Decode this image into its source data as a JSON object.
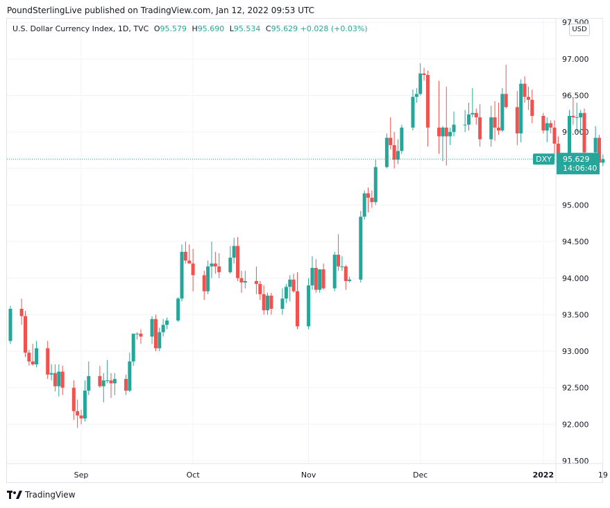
{
  "publisher_line": "PoundSterlingLive published on TradingView.com, Jan 12, 2022 09:53 UTC",
  "brand": "TradingView",
  "legend": {
    "symbol": "U.S. Dollar Currency Index, 1D, TVC",
    "o_label": "O",
    "o_value": "95.579",
    "h_label": "H",
    "h_value": "95.690",
    "l_label": "L",
    "l_value": "95.534",
    "c_label": "C",
    "c_value": "95.629",
    "change": "+0.028 (+0.03%)"
  },
  "currency_button": "USD",
  "price_tag": {
    "ticker": "DXY",
    "price": "95.629",
    "countdown": "14:06:40"
  },
  "colors": {
    "up": "#26a69a",
    "down": "#ef5350",
    "grid": "#f0f3fa",
    "axis_text": "#131722"
  },
  "chart_data": {
    "type": "candlestick",
    "title": "U.S. Dollar Currency Index, 1D, TVC",
    "y_ticks": [
      "91.500",
      "92.000",
      "92.500",
      "93.000",
      "93.500",
      "94.000",
      "94.500",
      "95.000",
      "95.500",
      "96.000",
      "96.500",
      "97.000",
      "97.500"
    ],
    "ylim": [
      91.5,
      97.5
    ],
    "x_ticks": [
      {
        "label": "Sep",
        "date": "2021-09-01",
        "bold": false
      },
      {
        "label": "Oct",
        "date": "2021-10-01",
        "bold": false
      },
      {
        "label": "Nov",
        "date": "2021-11-01",
        "bold": false
      },
      {
        "label": "Dec",
        "date": "2021-12-01",
        "bold": false
      },
      {
        "label": "2022",
        "date": "2022-01-03",
        "bold": true
      },
      {
        "label": "19",
        "date": "2022-01-19",
        "bold": false
      }
    ],
    "grid": true,
    "last_price": 95.629,
    "ohlc": [
      {
        "date": "2021-08-13",
        "o": 93.14,
        "h": 93.62,
        "l": 93.1,
        "c": 93.58
      },
      {
        "date": "2021-08-16",
        "o": 93.58,
        "h": 93.72,
        "l": 93.36,
        "c": 93.48
      },
      {
        "date": "2021-08-17",
        "o": 93.48,
        "h": 93.55,
        "l": 92.92,
        "c": 92.98
      },
      {
        "date": "2021-08-18",
        "o": 92.98,
        "h": 93.02,
        "l": 92.8,
        "c": 92.86
      },
      {
        "date": "2021-08-19",
        "o": 92.86,
        "h": 93.1,
        "l": 92.8,
        "c": 92.82
      },
      {
        "date": "2021-08-20",
        "o": 92.82,
        "h": 93.14,
        "l": 92.78,
        "c": 93.04
      },
      {
        "date": "2021-08-23",
        "o": 93.04,
        "h": 93.14,
        "l": 92.62,
        "c": 92.68
      },
      {
        "date": "2021-08-24",
        "o": 92.68,
        "h": 92.82,
        "l": 92.6,
        "c": 92.7
      },
      {
        "date": "2021-08-25",
        "o": 92.7,
        "h": 92.82,
        "l": 92.45,
        "c": 92.52
      },
      {
        "date": "2021-08-26",
        "o": 92.52,
        "h": 92.82,
        "l": 92.38,
        "c": 92.72
      },
      {
        "date": "2021-08-27",
        "o": 92.72,
        "h": 92.8,
        "l": 92.4,
        "c": 92.5
      },
      {
        "date": "2021-08-30",
        "o": 92.5,
        "h": 92.6,
        "l": 92.06,
        "c": 92.18
      },
      {
        "date": "2021-08-31",
        "o": 92.18,
        "h": 92.34,
        "l": 91.95,
        "c": 92.12
      },
      {
        "date": "2021-09-01",
        "o": 92.12,
        "h": 92.2,
        "l": 92.0,
        "c": 92.08
      },
      {
        "date": "2021-09-02",
        "o": 92.08,
        "h": 92.6,
        "l": 92.04,
        "c": 92.46
      },
      {
        "date": "2021-09-03",
        "o": 92.46,
        "h": 92.86,
        "l": 92.4,
        "c": 92.66
      },
      {
        "date": "2021-09-06",
        "o": 92.66,
        "h": 92.8,
        "l": 92.5,
        "c": 92.52
      },
      {
        "date": "2021-09-07",
        "o": 92.52,
        "h": 92.7,
        "l": 92.3,
        "c": 92.6
      },
      {
        "date": "2021-09-08",
        "o": 92.6,
        "h": 92.88,
        "l": 92.56,
        "c": 92.6
      },
      {
        "date": "2021-09-09",
        "o": 92.6,
        "h": 92.7,
        "l": 92.36,
        "c": 92.56
      },
      {
        "date": "2021-09-10",
        "o": 92.56,
        "h": 92.7,
        "l": 92.4,
        "c": 92.62
      },
      {
        "date": "2021-09-13",
        "o": 92.62,
        "h": 92.68,
        "l": 92.4,
        "c": 92.46
      },
      {
        "date": "2021-09-14",
        "o": 92.46,
        "h": 92.98,
        "l": 92.44,
        "c": 92.86
      },
      {
        "date": "2021-09-15",
        "o": 92.86,
        "h": 93.22,
        "l": 92.8,
        "c": 93.24
      },
      {
        "date": "2021-09-16",
        "o": 93.24,
        "h": 93.26,
        "l": 93.16,
        "c": 93.24
      },
      {
        "date": "2021-09-17",
        "o": 93.24,
        "h": 93.3,
        "l": 93.1,
        "c": 93.2
      },
      {
        "date": "2021-09-20",
        "o": 93.2,
        "h": 93.48,
        "l": 93.1,
        "c": 93.44
      },
      {
        "date": "2021-09-21",
        "o": 93.44,
        "h": 93.5,
        "l": 93.0,
        "c": 93.04
      },
      {
        "date": "2021-09-22",
        "o": 93.04,
        "h": 93.32,
        "l": 93.0,
        "c": 93.26
      },
      {
        "date": "2021-09-23",
        "o": 93.26,
        "h": 93.44,
        "l": 93.2,
        "c": 93.36
      },
      {
        "date": "2021-09-24",
        "o": 93.36,
        "h": 93.46,
        "l": 93.3,
        "c": 93.42
      },
      {
        "date": "2021-09-27",
        "o": 93.42,
        "h": 93.74,
        "l": 93.4,
        "c": 93.72
      },
      {
        "date": "2021-09-28",
        "o": 93.72,
        "h": 94.46,
        "l": 93.68,
        "c": 94.36
      },
      {
        "date": "2021-09-29",
        "o": 94.36,
        "h": 94.5,
        "l": 94.2,
        "c": 94.24
      },
      {
        "date": "2021-09-30",
        "o": 94.24,
        "h": 94.46,
        "l": 94.2,
        "c": 94.2
      },
      {
        "date": "2021-10-01",
        "o": 94.2,
        "h": 94.4,
        "l": 93.82,
        "c": 94.04
      },
      {
        "date": "2021-10-04",
        "o": 94.04,
        "h": 94.1,
        "l": 93.7,
        "c": 93.82
      },
      {
        "date": "2021-10-05",
        "o": 93.82,
        "h": 94.24,
        "l": 93.78,
        "c": 94.16
      },
      {
        "date": "2021-10-06",
        "o": 94.16,
        "h": 94.5,
        "l": 94.0,
        "c": 94.2
      },
      {
        "date": "2021-10-07",
        "o": 94.2,
        "h": 94.36,
        "l": 94.06,
        "c": 94.16
      },
      {
        "date": "2021-10-08",
        "o": 94.16,
        "h": 94.34,
        "l": 94.0,
        "c": 94.08
      },
      {
        "date": "2021-10-11",
        "o": 94.08,
        "h": 94.44,
        "l": 94.06,
        "c": 94.28
      },
      {
        "date": "2021-10-12",
        "o": 94.28,
        "h": 94.55,
        "l": 94.2,
        "c": 94.44
      },
      {
        "date": "2021-10-13",
        "o": 94.44,
        "h": 94.56,
        "l": 93.96,
        "c": 94.0
      },
      {
        "date": "2021-10-14",
        "o": 94.0,
        "h": 94.1,
        "l": 93.8,
        "c": 93.94
      },
      {
        "date": "2021-10-15",
        "o": 93.94,
        "h": 94.1,
        "l": 93.86,
        "c": 93.96
      },
      {
        "date": "2021-10-18",
        "o": 93.96,
        "h": 94.16,
        "l": 93.78,
        "c": 93.92
      },
      {
        "date": "2021-10-19",
        "o": 93.92,
        "h": 93.96,
        "l": 93.7,
        "c": 93.78
      },
      {
        "date": "2021-10-20",
        "o": 93.78,
        "h": 93.9,
        "l": 93.5,
        "c": 93.56
      },
      {
        "date": "2021-10-21",
        "o": 93.56,
        "h": 93.8,
        "l": 93.5,
        "c": 93.76
      },
      {
        "date": "2021-10-22",
        "o": 93.76,
        "h": 93.8,
        "l": 93.5,
        "c": 93.58
      },
      {
        "date": "2021-10-25",
        "o": 93.58,
        "h": 93.86,
        "l": 93.5,
        "c": 93.72
      },
      {
        "date": "2021-10-26",
        "o": 93.72,
        "h": 93.92,
        "l": 93.66,
        "c": 93.88
      },
      {
        "date": "2021-10-27",
        "o": 93.88,
        "h": 94.04,
        "l": 93.68,
        "c": 93.98
      },
      {
        "date": "2021-10-28",
        "o": 93.98,
        "h": 94.06,
        "l": 93.8,
        "c": 93.82
      },
      {
        "date": "2021-10-29",
        "o": 93.82,
        "h": 94.08,
        "l": 93.3,
        "c": 93.34
      },
      {
        "date": "2021-11-01",
        "o": 93.34,
        "h": 94.0,
        "l": 93.3,
        "c": 93.9
      },
      {
        "date": "2021-11-02",
        "o": 93.9,
        "h": 94.3,
        "l": 93.84,
        "c": 94.14
      },
      {
        "date": "2021-11-03",
        "o": 94.14,
        "h": 94.26,
        "l": 93.8,
        "c": 93.84
      },
      {
        "date": "2021-11-04",
        "o": 93.84,
        "h": 94.12,
        "l": 93.8,
        "c": 94.12
      },
      {
        "date": "2021-11-05",
        "o": 94.12,
        "h": 94.2,
        "l": 93.84,
        "c": 93.86
      },
      {
        "date": "2021-11-08",
        "o": 93.86,
        "h": 94.36,
        "l": 93.82,
        "c": 94.32
      },
      {
        "date": "2021-11-09",
        "o": 94.32,
        "h": 94.6,
        "l": 94.1,
        "c": 94.16
      },
      {
        "date": "2021-11-10",
        "o": 94.16,
        "h": 94.3,
        "l": 94.1,
        "c": 94.16
      },
      {
        "date": "2021-11-11",
        "o": 94.16,
        "h": 94.18,
        "l": 93.84,
        "c": 93.96
      },
      {
        "date": "2021-11-12",
        "o": 93.96,
        "h": 94.02,
        "l": 93.94,
        "c": 93.98
      },
      {
        "date": "2021-11-15",
        "o": 93.98,
        "h": 94.92,
        "l": 93.94,
        "c": 94.84
      },
      {
        "date": "2021-11-16",
        "o": 94.84,
        "h": 95.2,
        "l": 94.8,
        "c": 95.16
      },
      {
        "date": "2021-11-17",
        "o": 95.16,
        "h": 95.24,
        "l": 94.9,
        "c": 95.1
      },
      {
        "date": "2021-11-18",
        "o": 95.1,
        "h": 95.2,
        "l": 94.96,
        "c": 95.04
      },
      {
        "date": "2021-11-19",
        "o": 95.04,
        "h": 95.62,
        "l": 95.0,
        "c": 95.52
      },
      {
        "date": "2021-11-22",
        "o": 95.52,
        "h": 95.98,
        "l": 95.5,
        "c": 95.92
      },
      {
        "date": "2021-11-23",
        "o": 95.92,
        "h": 96.2,
        "l": 95.76,
        "c": 95.82
      },
      {
        "date": "2021-11-24",
        "o": 95.82,
        "h": 96.0,
        "l": 95.5,
        "c": 95.62
      },
      {
        "date": "2021-11-25",
        "o": 95.62,
        "h": 95.9,
        "l": 95.56,
        "c": 95.74
      },
      {
        "date": "2021-11-26",
        "o": 95.74,
        "h": 96.1,
        "l": 95.7,
        "c": 96.06
      },
      {
        "date": "2021-11-29",
        "o": 96.06,
        "h": 96.58,
        "l": 96.02,
        "c": 96.48
      },
      {
        "date": "2021-11-30",
        "o": 96.48,
        "h": 96.6,
        "l": 96.4,
        "c": 96.52
      },
      {
        "date": "2021-12-01",
        "o": 96.52,
        "h": 96.94,
        "l": 96.5,
        "c": 96.8
      },
      {
        "date": "2021-12-02",
        "o": 96.8,
        "h": 96.88,
        "l": 96.7,
        "c": 96.78
      },
      {
        "date": "2021-12-03",
        "o": 96.78,
        "h": 96.84,
        "l": 95.8,
        "c": 96.06
      },
      {
        "date": "2021-12-06",
        "o": 96.06,
        "h": 96.7,
        "l": 95.7,
        "c": 95.94
      },
      {
        "date": "2021-12-07",
        "o": 95.94,
        "h": 96.08,
        "l": 95.6,
        "c": 96.06
      },
      {
        "date": "2021-12-08",
        "o": 96.06,
        "h": 96.62,
        "l": 95.54,
        "c": 95.94
      },
      {
        "date": "2021-12-09",
        "o": 95.94,
        "h": 96.06,
        "l": 95.82,
        "c": 96.0
      },
      {
        "date": "2021-12-10",
        "o": 96.0,
        "h": 96.28,
        "l": 95.94,
        "c": 96.1
      },
      {
        "date": "2021-12-13",
        "o": 96.1,
        "h": 96.3,
        "l": 96.0,
        "c": 96.1
      },
      {
        "date": "2021-12-14",
        "o": 96.1,
        "h": 96.4,
        "l": 96.02,
        "c": 96.24
      },
      {
        "date": "2021-12-15",
        "o": 96.24,
        "h": 96.6,
        "l": 96.2,
        "c": 96.26
      },
      {
        "date": "2021-12-16",
        "o": 96.26,
        "h": 96.32,
        "l": 96.1,
        "c": 96.2
      },
      {
        "date": "2021-12-17",
        "o": 96.2,
        "h": 96.38,
        "l": 95.8,
        "c": 95.9
      },
      {
        "date": "2021-12-20",
        "o": 95.9,
        "h": 96.36,
        "l": 95.8,
        "c": 96.2
      },
      {
        "date": "2021-12-21",
        "o": 96.2,
        "h": 96.42,
        "l": 95.88,
        "c": 96.06
      },
      {
        "date": "2021-12-22",
        "o": 96.06,
        "h": 96.4,
        "l": 95.96,
        "c": 96.02
      },
      {
        "date": "2021-12-23",
        "o": 96.02,
        "h": 96.6,
        "l": 96.0,
        "c": 96.52
      },
      {
        "date": "2021-12-24",
        "o": 96.52,
        "h": 96.92,
        "l": 96.32,
        "c": 96.34
      },
      {
        "date": "2021-12-27",
        "o": 96.34,
        "h": 96.56,
        "l": 95.82,
        "c": 95.98
      },
      {
        "date": "2021-12-28",
        "o": 95.98,
        "h": 96.72,
        "l": 95.86,
        "c": 96.66
      },
      {
        "date": "2021-12-29",
        "o": 96.66,
        "h": 96.76,
        "l": 96.4,
        "c": 96.48
      },
      {
        "date": "2021-12-30",
        "o": 96.48,
        "h": 96.62,
        "l": 96.3,
        "c": 96.44
      },
      {
        "date": "2021-12-31",
        "o": 96.44,
        "h": 96.58,
        "l": 96.12,
        "c": 96.22
      },
      {
        "date": "2022-01-03",
        "o": 96.22,
        "h": 96.26,
        "l": 95.98,
        "c": 96.02
      },
      {
        "date": "2022-01-04",
        "o": 96.02,
        "h": 96.2,
        "l": 95.86,
        "c": 96.12
      },
      {
        "date": "2022-01-05",
        "o": 96.12,
        "h": 96.16,
        "l": 95.98,
        "c": 96.06
      },
      {
        "date": "2022-01-06",
        "o": 96.06,
        "h": 96.16,
        "l": 95.66,
        "c": 95.84
      },
      {
        "date": "2022-01-07",
        "o": 95.84,
        "h": 95.94,
        "l": 95.56,
        "c": 95.58
      },
      {
        "date": "2022-01-10",
        "o": 95.58,
        "h": 96.3,
        "l": 95.56,
        "c": 96.22
      },
      {
        "date": "2022-01-11",
        "o": 96.22,
        "h": 96.46,
        "l": 96.1,
        "c": 96.2
      },
      {
        "date": "2022-01-12",
        "o": 96.2,
        "h": 96.4,
        "l": 96.0,
        "c": 96.2
      },
      {
        "date": "2022-01-13",
        "o": 96.2,
        "h": 96.3,
        "l": 95.96,
        "c": 96.26
      },
      {
        "date": "2022-01-14",
        "o": 96.26,
        "h": 96.32,
        "l": 95.62,
        "c": 95.72
      },
      {
        "date": "2022-01-17",
        "o": 95.72,
        "h": 96.08,
        "l": 95.56,
        "c": 95.92
      },
      {
        "date": "2022-01-18",
        "o": 95.92,
        "h": 95.96,
        "l": 95.58,
        "c": 95.58
      },
      {
        "date": "2022-01-19",
        "o": 95.579,
        "h": 95.69,
        "l": 95.534,
        "c": 95.629
      }
    ]
  }
}
